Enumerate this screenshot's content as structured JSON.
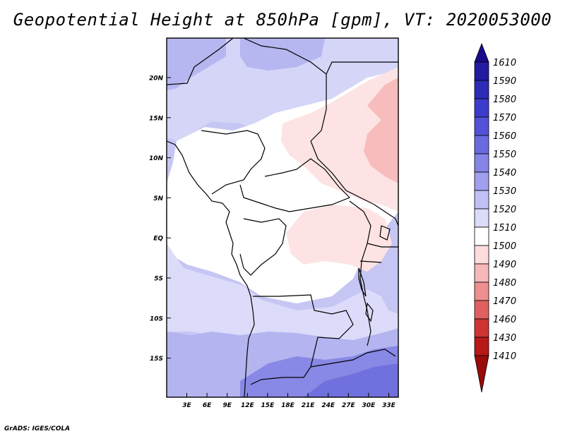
{
  "title": "Geopotential Height at 850hPa [gpm], VT: 2020053000",
  "credit": "GrADS: IGES/COLA",
  "map": {
    "lat_labels": [
      "20N",
      "15N",
      "10N",
      "5N",
      "EQ",
      "5S",
      "10S",
      "15S"
    ],
    "lon_labels": [
      "3E",
      "6E",
      "9E",
      "12E",
      "15E",
      "18E",
      "21E",
      "24E",
      "27E",
      "30E",
      "33E"
    ]
  },
  "colorbar": {
    "levels": [
      "1610",
      "1590",
      "1580",
      "1570",
      "1560",
      "1550",
      "1540",
      "1530",
      "1520",
      "1510",
      "1500",
      "1490",
      "1480",
      "1470",
      "1460",
      "1430",
      "1410"
    ],
    "colors": [
      "#1a0a8c",
      "#221ba2",
      "#2c2cb8",
      "#3c3ccc",
      "#5252d8",
      "#6a6ae0",
      "#8585e8",
      "#a0a0ee",
      "#c0c0f5",
      "#dcdcfa",
      "#ffffff",
      "#fddcdc",
      "#f7b8b8",
      "#ee8e8e",
      "#e06060",
      "#cf3434",
      "#b81818",
      "#9a0a0a"
    ]
  },
  "fields": {
    "ocean": "#c6c6f4",
    "land_white": "#ffffff",
    "north_light": "#dcdcfa",
    "pink": "#fde3e3",
    "pink_dark": "#f8bcbc",
    "south_mid": "#b0b0f0",
    "south_dark": "#7c7ce4"
  }
}
